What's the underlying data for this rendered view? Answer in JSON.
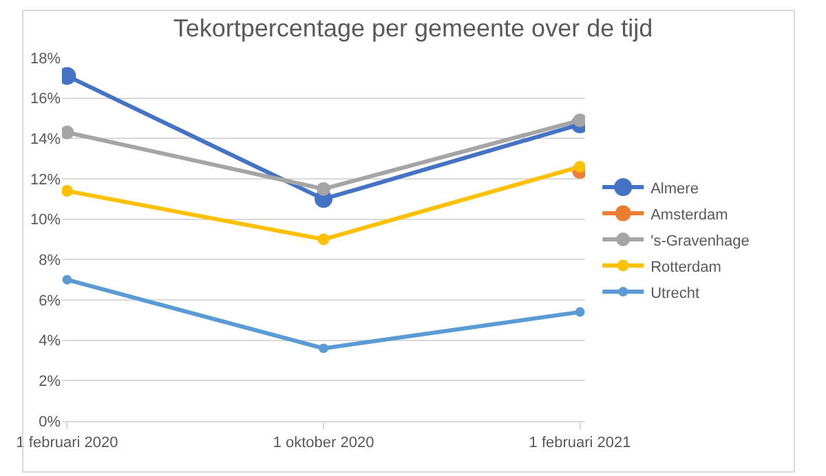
{
  "chart_data": {
    "type": "line",
    "title": "Tekortpercentage per gemeente over de tijd",
    "categories": [
      "1 februari 2020",
      "1 oktober 2020",
      "1 februari 2021"
    ],
    "series": [
      {
        "name": "Almere",
        "color": "#4472c4",
        "values": [
          17.1,
          11.0,
          14.7
        ]
      },
      {
        "name": "Amsterdam",
        "color": "#ed7d31",
        "values": [
          null,
          null,
          12.4
        ]
      },
      {
        "name": "'s-Gravenhage",
        "color": "#a5a5a5",
        "values": [
          14.3,
          11.5,
          14.9
        ]
      },
      {
        "name": "Rotterdam",
        "color": "#ffc000",
        "values": [
          11.4,
          9.0,
          12.6
        ]
      },
      {
        "name": "Utrecht",
        "color": "#5b9bd5",
        "values": [
          7.0,
          3.6,
          5.4
        ]
      }
    ],
    "ylim": [
      0,
      18
    ],
    "yticks": [
      {
        "value": 0,
        "label": "0%"
      },
      {
        "value": 2,
        "label": "2%"
      },
      {
        "value": 4,
        "label": "4%"
      },
      {
        "value": 6,
        "label": "6%"
      },
      {
        "value": 8,
        "label": "8%"
      },
      {
        "value": 10,
        "label": "10%"
      },
      {
        "value": 12,
        "label": "12%"
      },
      {
        "value": 14,
        "label": "14%"
      },
      {
        "value": 16,
        "label": "16%"
      },
      {
        "value": 18,
        "label": "18%"
      }
    ],
    "grid": "y",
    "legend": "right",
    "marker": "circle",
    "line_style": "solid"
  }
}
